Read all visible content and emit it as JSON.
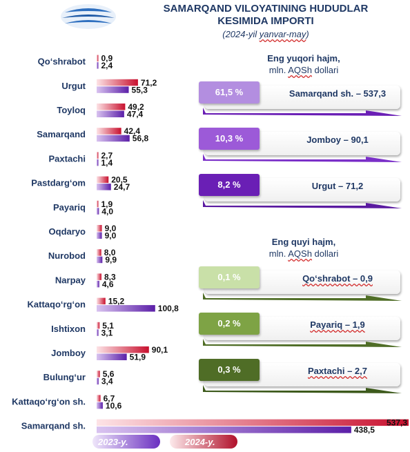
{
  "title_lines": [
    "SAMARQAND VILOYATINING HUDUDLAR",
    "KESIMIDA IMPORTI"
  ],
  "subtitle": "(2024-yil yanvar-may)",
  "colors": {
    "bar_2024": "#e23a50",
    "bar_2023": "#7b3fc4",
    "title": "#1f3864",
    "top_cards": [
      "#b38ee0",
      "#9c5ad8",
      "#6a1fb5"
    ],
    "bottom_cards": [
      "#c9e0a8",
      "#7ea345",
      "#4f6d26"
    ]
  },
  "chart_data": {
    "type": "bar",
    "orientation": "horizontal",
    "categories": [
      "Qo‘shrabot",
      "Urgut",
      "Toyloq",
      "Samarqand",
      "Paxtachi",
      "Pastdarg‘om",
      "Payariq",
      "Oqdaryo",
      "Nurobod",
      "Narpay",
      "Kattaqo‘rg‘on",
      "Ishtixon",
      "Jomboy",
      "Bulung‘ur",
      "Kattaqo‘rg‘on sh.",
      "Samarqand sh."
    ],
    "series": [
      {
        "name": "2024-y.",
        "values": [
          "0,9",
          "71,2",
          "49,2",
          "42,4",
          "2,7",
          "20,5",
          "1,9",
          "9,0",
          "8,0",
          "8,3",
          "15,2",
          "5,1",
          "90,1",
          "5,6",
          "6,7",
          "537,3"
        ]
      },
      {
        "name": "2023-y.",
        "values": [
          "2,4",
          "55,3",
          "47,4",
          "56,8",
          "1,4",
          "24,7",
          "4,0",
          "9,0",
          "9,9",
          "4,6",
          "100,8",
          "3,1",
          "51,9",
          "3,4",
          "10,6",
          "438,5"
        ]
      }
    ],
    "legend_placement": "bottom-left",
    "xlim": [
      0,
      537.3
    ]
  },
  "top_section": {
    "title": "Eng yuqori hajm,",
    "unit": "mln. AQSh dollari",
    "items": [
      {
        "percent": "61,5 %",
        "label": "Samarqand sh. – 537,3"
      },
      {
        "percent": "10,3 %",
        "label": "Jomboy – 90,1"
      },
      {
        "percent": "8,2 %",
        "label": "Urgut – 71,2"
      }
    ]
  },
  "bottom_section": {
    "title": "Eng quyi hajm,",
    "unit": "mln. AQSh dollari",
    "items": [
      {
        "percent": "0,1 %",
        "label": "Qo‘shrabot – 0,9"
      },
      {
        "percent": "0,2 %",
        "label": "Payariq – 1,9"
      },
      {
        "percent": "0,3 %",
        "label": "Paxtachi – 2,7"
      }
    ]
  }
}
